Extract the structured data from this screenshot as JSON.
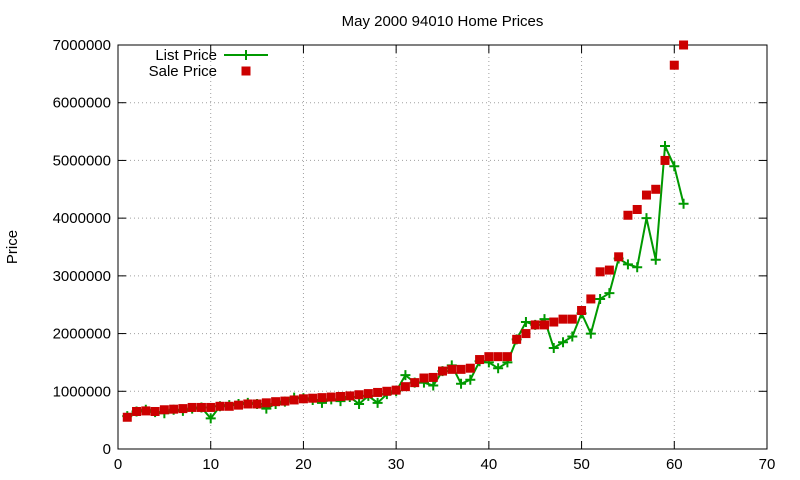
{
  "chart_data": {
    "type": "line",
    "title": "May 2000 94010 Home Prices",
    "xlabel": "",
    "ylabel": "Price",
    "xlim": [
      0,
      70
    ],
    "ylim": [
      0,
      7000000
    ],
    "xticks": [
      0,
      10,
      20,
      30,
      40,
      50,
      60,
      70
    ],
    "yticks": [
      0,
      1000000,
      2000000,
      3000000,
      4000000,
      5000000,
      6000000,
      7000000
    ],
    "xtick_labels": [
      "0",
      "10",
      "20",
      "30",
      "40",
      "50",
      "60",
      "70"
    ],
    "ytick_labels": [
      "0",
      "1000000",
      "2000000",
      "3000000",
      "4000000",
      "5000000",
      "6000000",
      "7000000"
    ],
    "grid": true,
    "legend_position": "top-left",
    "series": [
      {
        "name": "List Price",
        "style": "line+cross",
        "color": "#009900",
        "x": [
          1,
          2,
          3,
          4,
          5,
          6,
          7,
          8,
          9,
          10,
          11,
          12,
          13,
          14,
          15,
          16,
          17,
          18,
          19,
          20,
          21,
          22,
          23,
          24,
          25,
          26,
          27,
          28,
          29,
          30,
          31,
          32,
          33,
          34,
          35,
          36,
          37,
          38,
          39,
          40,
          41,
          42,
          43,
          44,
          45,
          46,
          47,
          48,
          49,
          50,
          51,
          52,
          53,
          54,
          55,
          56,
          57,
          58,
          59,
          60,
          61
        ],
        "values": [
          570000,
          650000,
          680000,
          640000,
          620000,
          680000,
          660000,
          700000,
          720000,
          530000,
          740000,
          760000,
          780000,
          800000,
          780000,
          700000,
          780000,
          820000,
          890000,
          880000,
          850000,
          800000,
          860000,
          830000,
          900000,
          780000,
          920000,
          800000,
          950000,
          1000000,
          1280000,
          1150000,
          1150000,
          1100000,
          1350000,
          1450000,
          1130000,
          1200000,
          1520000,
          1500000,
          1400000,
          1500000,
          1900000,
          2200000,
          2150000,
          2250000,
          1750000,
          1850000,
          1950000,
          2350000,
          2000000,
          2600000,
          2700000,
          3300000,
          3200000,
          3150000,
          4000000,
          3280000,
          5250000,
          4900000,
          4250000
        ]
      },
      {
        "name": "Sale Price",
        "style": "square",
        "color": "#cc0000",
        "x": [
          1,
          2,
          3,
          4,
          5,
          6,
          7,
          8,
          9,
          10,
          11,
          12,
          13,
          14,
          15,
          16,
          17,
          18,
          19,
          20,
          21,
          22,
          23,
          24,
          25,
          26,
          27,
          28,
          29,
          30,
          31,
          32,
          33,
          34,
          35,
          36,
          37,
          38,
          39,
          40,
          41,
          42,
          43,
          44,
          45,
          46,
          47,
          48,
          49,
          50,
          51,
          52,
          53,
          54,
          55,
          56,
          57,
          58,
          59,
          60,
          61
        ],
        "values": [
          550000,
          650000,
          660000,
          650000,
          680000,
          690000,
          700000,
          720000,
          720000,
          720000,
          740000,
          740000,
          760000,
          780000,
          780000,
          800000,
          820000,
          830000,
          850000,
          870000,
          880000,
          890000,
          900000,
          910000,
          920000,
          940000,
          960000,
          980000,
          1000000,
          1020000,
          1080000,
          1150000,
          1230000,
          1240000,
          1350000,
          1380000,
          1380000,
          1400000,
          1550000,
          1600000,
          1600000,
          1600000,
          1900000,
          2000000,
          2150000,
          2150000,
          2200000,
          2250000,
          2250000,
          2400000,
          2600000,
          3070000,
          3100000,
          3330000,
          4050000,
          4150000,
          4400000,
          4500000,
          5000000,
          6650000,
          7000000
        ]
      }
    ]
  }
}
